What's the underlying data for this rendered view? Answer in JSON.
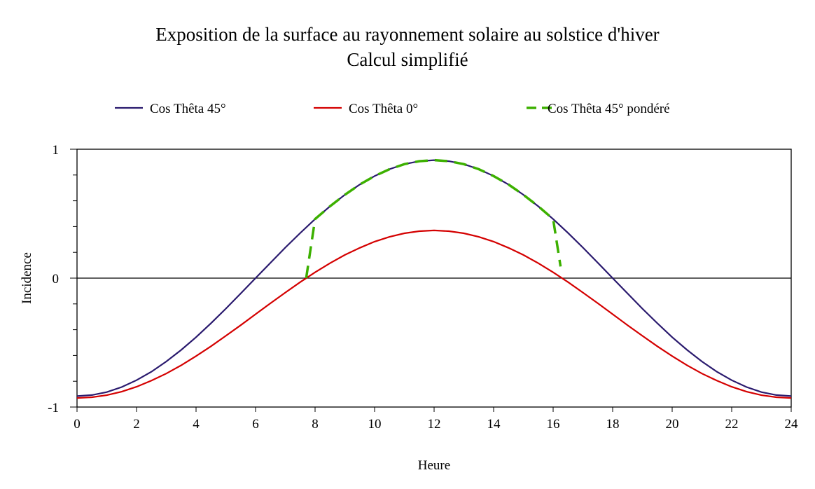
{
  "chart_data": {
    "type": "line",
    "title": "Exposition de la surface au rayonnement solaire au solstice d'hiver",
    "subtitle": "Calcul simplifié",
    "xlabel": "Heure",
    "ylabel": "Incidence",
    "xlim": [
      0,
      24
    ],
    "ylim": [
      -1,
      1
    ],
    "xticks": [
      0,
      2,
      4,
      6,
      8,
      10,
      12,
      14,
      16,
      18,
      20,
      22,
      24
    ],
    "yticks": [
      -1,
      0,
      1
    ],
    "legend_position": "top",
    "series": [
      {
        "name": "Cos Thêta 45°",
        "color": "#2a1a6e",
        "dash": false,
        "x": [
          0,
          0.5,
          1,
          1.5,
          2,
          2.5,
          3,
          3.5,
          4,
          4.5,
          5,
          5.5,
          6,
          6.5,
          7,
          7.5,
          8,
          8.5,
          9,
          9.5,
          10,
          10.5,
          11,
          11.5,
          12,
          12.5,
          13,
          13.5,
          14,
          14.5,
          15,
          15.5,
          16,
          16.5,
          17,
          17.5,
          18,
          18.5,
          19,
          19.5,
          20,
          20.5,
          21,
          21.5,
          22,
          22.5,
          23,
          23.5,
          24
        ],
        "y": [
          -0.915,
          -0.907,
          -0.884,
          -0.845,
          -0.792,
          -0.726,
          -0.647,
          -0.557,
          -0.458,
          -0.35,
          -0.237,
          -0.119,
          0,
          0.119,
          0.237,
          0.35,
          0.458,
          0.557,
          0.647,
          0.726,
          0.792,
          0.845,
          0.884,
          0.907,
          0.915,
          0.907,
          0.884,
          0.845,
          0.792,
          0.726,
          0.647,
          0.557,
          0.458,
          0.35,
          0.237,
          0.119,
          0,
          -0.119,
          -0.237,
          -0.35,
          -0.458,
          -0.557,
          -0.647,
          -0.726,
          -0.792,
          -0.845,
          -0.884,
          -0.907,
          -0.915
        ]
      },
      {
        "name": "Cos Thêta 0°",
        "color": "#d40000",
        "dash": false,
        "x": [
          0,
          0.5,
          1,
          1.5,
          2,
          2.5,
          3,
          3.5,
          4,
          4.5,
          5,
          5.5,
          6,
          6.5,
          7,
          7.5,
          8,
          8.5,
          9,
          9.5,
          10,
          10.5,
          11,
          11.5,
          12,
          12.5,
          13,
          13.5,
          14,
          14.5,
          15,
          15.5,
          16,
          16.5,
          17,
          17.5,
          18,
          18.5,
          19,
          19.5,
          20,
          20.5,
          21,
          21.5,
          22,
          22.5,
          23,
          23.5,
          24
        ],
        "y": [
          -0.93,
          -0.924,
          -0.908,
          -0.881,
          -0.843,
          -0.795,
          -0.74,
          -0.676,
          -0.605,
          -0.529,
          -0.448,
          -0.365,
          -0.28,
          -0.195,
          -0.112,
          -0.031,
          0.045,
          0.116,
          0.18,
          0.235,
          0.283,
          0.32,
          0.348,
          0.364,
          0.37,
          0.364,
          0.348,
          0.32,
          0.283,
          0.235,
          0.18,
          0.116,
          0.045,
          -0.031,
          -0.112,
          -0.195,
          -0.28,
          -0.365,
          -0.448,
          -0.529,
          -0.605,
          -0.676,
          -0.74,
          -0.795,
          -0.843,
          -0.881,
          -0.908,
          -0.924,
          -0.93
        ]
      },
      {
        "name": "Cos Thêta 45° pondéré",
        "color": "#3cb000",
        "dash": true,
        "x": [
          7.7,
          8,
          8.5,
          9,
          9.5,
          10,
          10.5,
          11,
          11.5,
          12,
          12.5,
          13,
          13.5,
          14,
          14.5,
          15,
          15.5,
          16,
          16.25
        ],
        "y": [
          0,
          0.458,
          0.557,
          0.647,
          0.726,
          0.792,
          0.845,
          0.884,
          0.907,
          0.915,
          0.907,
          0.884,
          0.845,
          0.792,
          0.726,
          0.647,
          0.557,
          0.458,
          0.09
        ]
      }
    ]
  }
}
